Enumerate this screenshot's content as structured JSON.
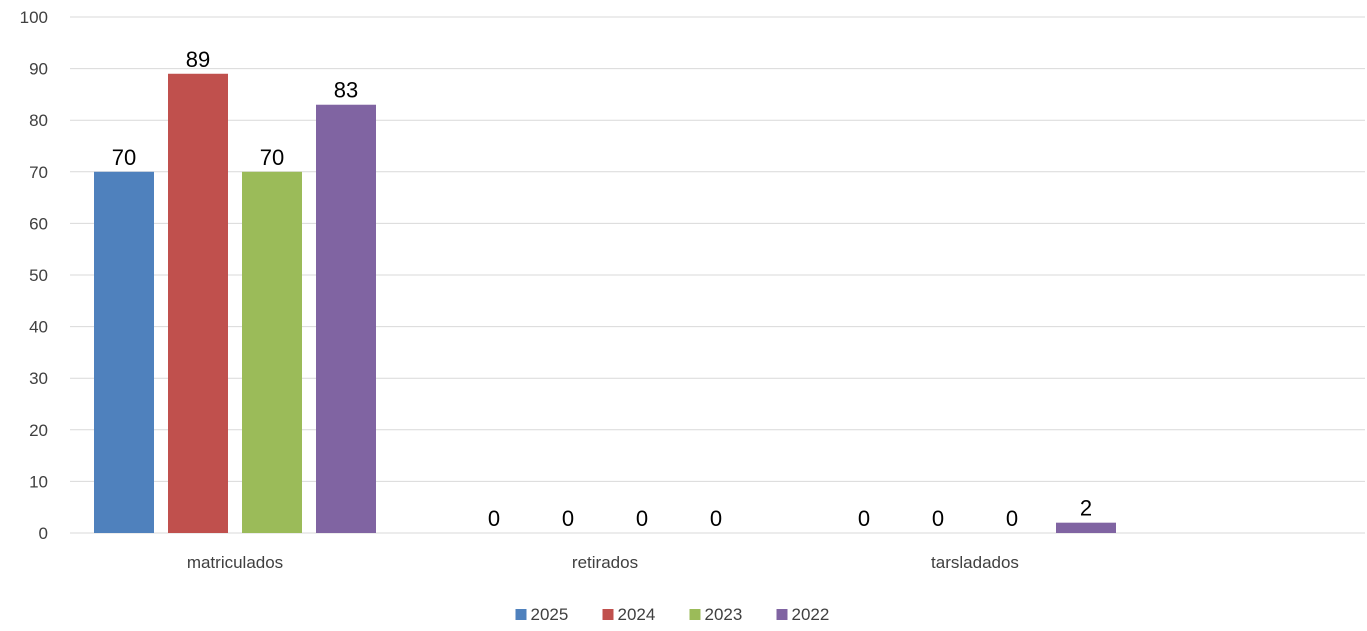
{
  "chart_data": {
    "type": "bar",
    "categories": [
      "matriculados",
      "retirados",
      "tarsladados"
    ],
    "series": [
      {
        "name": "2025",
        "color": "#4f81bd",
        "values": [
          70,
          0,
          0
        ]
      },
      {
        "name": "2024",
        "color": "#c0504d",
        "values": [
          89,
          0,
          0
        ]
      },
      {
        "name": "2023",
        "color": "#9bbb59",
        "values": [
          70,
          0,
          0
        ]
      },
      {
        "name": "2022",
        "color": "#8064a2",
        "values": [
          83,
          0,
          2
        ]
      }
    ],
    "ylim": [
      0,
      100
    ],
    "yticks": [
      "0",
      "10",
      "20",
      "30",
      "40",
      "50",
      "60",
      "70",
      "80",
      "90",
      "100"
    ],
    "grid": true,
    "legend_position": "bottom",
    "data_labels": true
  }
}
